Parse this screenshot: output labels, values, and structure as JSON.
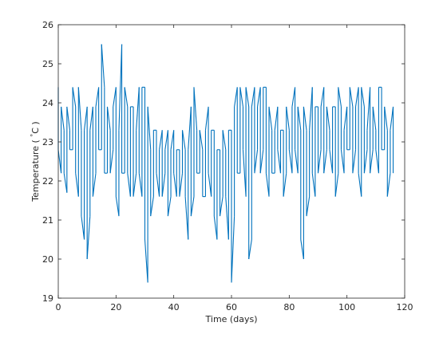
{
  "chart_data": {
    "type": "line",
    "title": "",
    "xlabel": "Time (days)",
    "ylabel_prefix": "Temperature ( ",
    "ylabel_degree": "°",
    "ylabel_suffix": "C )",
    "xlim": [
      0,
      120
    ],
    "ylim": [
      19,
      26
    ],
    "xticks": [
      0,
      20,
      40,
      60,
      80,
      100,
      120
    ],
    "yticks": [
      19,
      20,
      21,
      22,
      23,
      24,
      25,
      26
    ],
    "grid": false,
    "legend": "none",
    "line_color": "#0072BD",
    "axis_color": "#262626",
    "series": [
      {
        "x": [
          0,
          1,
          2,
          3,
          4,
          5,
          6,
          7,
          8,
          9,
          10,
          11,
          12,
          13,
          14,
          15,
          16,
          17,
          18,
          19,
          20,
          21,
          22,
          23,
          24,
          25,
          26,
          27,
          28,
          29,
          30,
          31,
          32,
          33,
          34,
          35,
          36,
          37,
          38,
          39,
          40,
          41,
          42,
          43,
          44,
          45,
          46,
          47,
          48,
          49,
          50,
          51,
          52,
          53,
          54,
          55,
          56,
          57,
          58,
          59,
          60,
          61,
          62,
          63,
          64,
          65,
          66,
          67,
          68,
          69,
          70,
          71,
          72,
          73,
          74,
          75,
          76,
          77,
          78,
          79,
          80,
          81,
          82,
          83,
          84,
          85,
          86,
          87,
          88,
          89,
          90,
          91,
          92,
          93,
          94,
          95,
          96,
          97,
          98,
          99,
          100,
          101,
          102,
          103,
          104,
          105,
          106,
          107,
          108,
          109,
          110,
          111,
          112,
          113,
          114,
          115,
          116
        ],
        "ymin": [
          22.8,
          22.2,
          22.2,
          21.7,
          22.8,
          22.8,
          22.2,
          21.6,
          21.1,
          20.5,
          20.0,
          21.1,
          21.6,
          22.2,
          22.8,
          22.8,
          22.2,
          22.2,
          22.2,
          22.8,
          21.6,
          21.1,
          22.2,
          22.2,
          22.2,
          21.6,
          21.6,
          22.2,
          22.2,
          21.6,
          20.5,
          19.4,
          21.1,
          21.6,
          22.2,
          21.6,
          21.6,
          22.2,
          21.1,
          21.6,
          22.2,
          21.6,
          21.6,
          22.2,
          21.6,
          20.5,
          21.1,
          21.6,
          22.2,
          22.2,
          21.6,
          21.6,
          22.2,
          21.6,
          21.1,
          20.5,
          21.1,
          21.6,
          21.6,
          20.5,
          19.4,
          21.1,
          22.2,
          22.2,
          22.8,
          21.6,
          20.0,
          20.5,
          22.2,
          22.8,
          22.2,
          22.8,
          22.2,
          21.6,
          22.2,
          22.2,
          22.8,
          22.2,
          21.6,
          22.2,
          22.8,
          22.2,
          22.8,
          22.2,
          20.5,
          20.0,
          21.1,
          21.6,
          22.2,
          21.6,
          22.2,
          22.8,
          22.2,
          22.8,
          22.8,
          22.2,
          21.6,
          22.2,
          22.8,
          22.2,
          22.8,
          22.8,
          22.2,
          22.8,
          22.2,
          21.6,
          22.2,
          22.8,
          22.2,
          22.8,
          22.8,
          22.2,
          22.8,
          22.8,
          21.6,
          22.2,
          22.2
        ],
        "ymax": [
          24.4,
          23.9,
          23.3,
          23.9,
          23.3,
          24.4,
          23.9,
          24.4,
          23.3,
          23.3,
          23.9,
          23.3,
          23.9,
          23.9,
          24.4,
          25.5,
          24.4,
          23.9,
          23.3,
          23.9,
          24.4,
          23.3,
          25.5,
          24.4,
          23.9,
          23.9,
          23.9,
          23.3,
          24.4,
          24.4,
          24.4,
          23.9,
          22.8,
          23.3,
          23.3,
          22.8,
          23.3,
          22.8,
          23.3,
          22.8,
          23.3,
          22.8,
          22.8,
          23.3,
          22.8,
          22.8,
          23.9,
          24.4,
          23.3,
          23.3,
          22.8,
          23.3,
          23.9,
          23.3,
          23.3,
          22.8,
          22.8,
          23.3,
          22.8,
          23.3,
          23.3,
          23.9,
          24.4,
          24.4,
          23.9,
          24.4,
          23.9,
          23.9,
          24.4,
          23.9,
          24.4,
          24.4,
          24.4,
          23.9,
          23.3,
          23.3,
          23.9,
          23.3,
          23.3,
          23.9,
          23.3,
          23.9,
          24.4,
          23.9,
          23.3,
          23.9,
          23.3,
          23.3,
          24.4,
          23.9,
          23.9,
          23.9,
          24.4,
          23.9,
          23.3,
          23.9,
          23.9,
          24.4,
          23.9,
          23.3,
          23.9,
          24.4,
          23.9,
          23.9,
          24.4,
          24.4,
          23.9,
          23.3,
          24.4,
          23.9,
          23.3,
          24.4,
          24.4,
          23.9,
          23.3,
          23.3,
          23.9
        ]
      }
    ]
  }
}
